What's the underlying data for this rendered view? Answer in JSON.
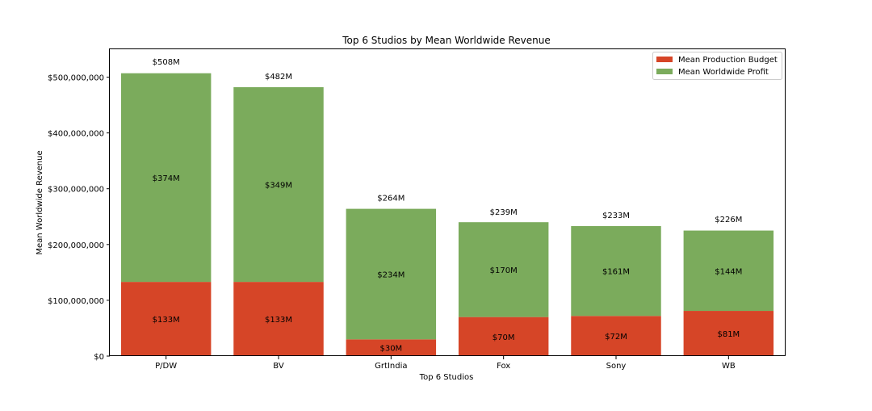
{
  "chart_data": {
    "type": "bar",
    "stacked": true,
    "title": "Top 6 Studios by Mean Worldwide Revenue",
    "xlabel": "Top 6 Studios",
    "ylabel": "Mean Worldwide Revenue",
    "categories": [
      "P/DW",
      "BV",
      "GrtIndia",
      "Fox",
      "Sony",
      "WB"
    ],
    "series": [
      {
        "name": "Mean Production Budget",
        "color": "#d64527",
        "values": [
          133000000,
          133000000,
          30000000,
          70000000,
          72000000,
          81000000
        ],
        "labels": [
          "$133M",
          "$133M",
          "$30M",
          "$70M",
          "$72M",
          "$81M"
        ]
      },
      {
        "name": "Mean Worldwide Profit",
        "color": "#7bab5c",
        "values": [
          374000000,
          349000000,
          234000000,
          170000000,
          161000000,
          144000000
        ],
        "labels": [
          "$374M",
          "$349M",
          "$234M",
          "$170M",
          "$161M",
          "$144M"
        ]
      }
    ],
    "total_labels": [
      "$508M",
      "$482M",
      "$264M",
      "$239M",
      "$233M",
      "$226M"
    ],
    "totals": [
      508000000,
      482000000,
      264000000,
      239000000,
      233000000,
      226000000
    ],
    "ylim": [
      0,
      550000000
    ],
    "yticks": [
      0,
      100000000,
      200000000,
      300000000,
      400000000,
      500000000
    ],
    "ytick_labels": [
      "$0",
      "$100,000,000",
      "$200,000,000",
      "$300,000,000",
      "$400,000,000",
      "$500,000,000"
    ],
    "legend": "top-right",
    "grid": false
  }
}
